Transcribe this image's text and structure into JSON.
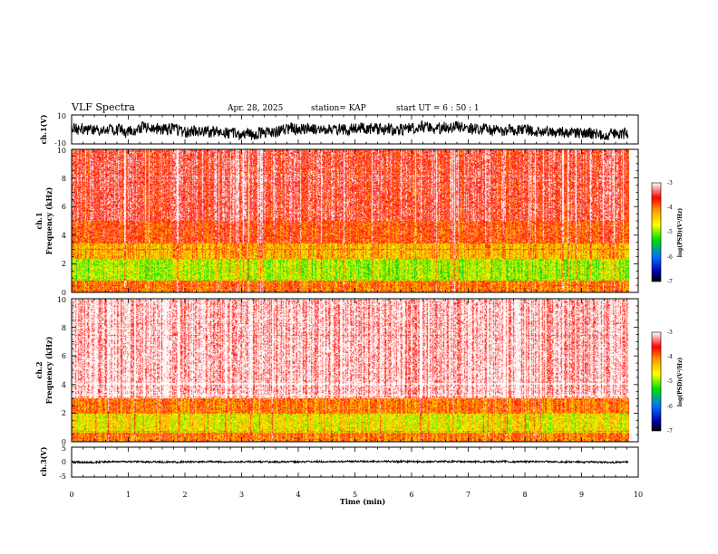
{
  "header": {
    "title": "VLF Spectra",
    "date": "Apr. 28, 2025",
    "station": "station= KAP",
    "start_time": "start  UT =   6  : 50 : 1"
  },
  "chart_data": {
    "type": "heatmap",
    "x_axis": {
      "label": "Time  (min)",
      "range": [
        0,
        10
      ],
      "ticks": [
        "0",
        "1",
        "2",
        "3",
        "4",
        "5",
        "6",
        "7",
        "8",
        "9",
        "10"
      ],
      "data_end": 9.83
    },
    "panels": [
      {
        "name": "ch.1 waveform",
        "type": "line",
        "ylabel": "ch.1(V)",
        "ylim": [
          -10,
          10
        ],
        "ytick_labels": [
          "10",
          "-10"
        ],
        "baseline": 0.5,
        "amplitude": 4,
        "line_color": "#000000"
      },
      {
        "name": "ch.1 spectrogram",
        "type": "heatmap",
        "ylabel_line1": "ch.1",
        "ylabel_line2": "Frequency  (kHz)",
        "ylim": [
          0,
          10
        ],
        "ytick_labels": [
          "0",
          "2",
          "4",
          "6",
          "8",
          "10"
        ],
        "level_bands": [
          {
            "f_from": 0.0,
            "f_to": 0.8,
            "level": -4.0
          },
          {
            "f_from": 0.8,
            "f_to": 2.3,
            "level": -4.9
          },
          {
            "f_from": 2.3,
            "f_to": 3.4,
            "level": -4.3
          },
          {
            "f_from": 3.4,
            "f_to": 5.0,
            "level": -3.8
          },
          {
            "f_from": 5.0,
            "f_to": 10.0,
            "level": -3.5
          }
        ]
      },
      {
        "name": "ch.2 spectrogram",
        "type": "heatmap",
        "ylabel_line1": "ch.2",
        "ylabel_line2": "Frequency  (kHz)",
        "ylim": [
          0,
          10
        ],
        "ytick_labels": [
          "0",
          "2",
          "4",
          "6",
          "8",
          "10"
        ],
        "level_bands": [
          {
            "f_from": 0.0,
            "f_to": 0.6,
            "level": -4.0
          },
          {
            "f_from": 0.6,
            "f_to": 2.0,
            "level": -4.6
          },
          {
            "f_from": 2.0,
            "f_to": 3.0,
            "level": -4.0
          },
          {
            "f_from": 3.0,
            "f_to": 10.0,
            "level": -3.1
          }
        ]
      },
      {
        "name": "ch.3 waveform",
        "type": "line",
        "ylabel": "ch.3(V)",
        "ylim": [
          -5,
          5
        ],
        "ytick_labels": [
          "5",
          "0",
          "-5"
        ],
        "baseline": 0,
        "amplitude": 0.3,
        "line_color": "#000000"
      }
    ],
    "colorbars": [
      {
        "label": "log(PSD)(V²/Hz)",
        "range": [
          -7,
          -3
        ],
        "tick_labels": [
          "-3",
          "-4",
          "-5",
          "-6",
          "-7"
        ]
      },
      {
        "label": "log(PSD)(V²/Hz)",
        "range": [
          -7,
          -3
        ],
        "tick_labels": [
          "-3",
          "-4",
          "-5",
          "-6",
          "-7"
        ]
      }
    ],
    "colormap": [
      {
        "level": -7.0,
        "color": "#000000"
      },
      {
        "level": -6.6,
        "color": "#0000aa"
      },
      {
        "level": -6.0,
        "color": "#0070ff"
      },
      {
        "level": -5.3,
        "color": "#00e000"
      },
      {
        "level": -4.7,
        "color": "#ffff00"
      },
      {
        "level": -4.1,
        "color": "#ff9900"
      },
      {
        "level": -3.6,
        "color": "#ff0000"
      },
      {
        "level": -3.0,
        "color": "#ffffff"
      }
    ]
  }
}
